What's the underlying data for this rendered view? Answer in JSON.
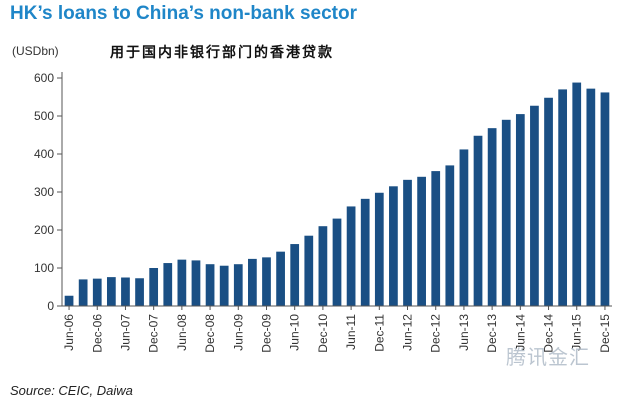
{
  "title": "HK’s loans to China’s non-bank sector",
  "unit_label": "(USDbn)",
  "subtitle_cn": "用于国内非银行部门的香港贷款",
  "source": "Source: CEIC, Daiwa",
  "watermark": "腾讯金汇",
  "colors": {
    "bar": "#1a4f84",
    "title": "#1f86c8",
    "axis": "#555555"
  },
  "chart_data": {
    "type": "bar",
    "ylabel": "(USDbn)",
    "ylim": [
      0,
      600
    ],
    "yticks": [
      0,
      100,
      200,
      300,
      400,
      500,
      600
    ],
    "grid": false,
    "xtick_labels": [
      "Jun-06",
      "Dec-06",
      "Jun-07",
      "Dec-07",
      "Jun-08",
      "Dec-08",
      "Jun-09",
      "Dec-09",
      "Jun-10",
      "Dec-10",
      "Jun-11",
      "Dec-11",
      "Jun-12",
      "Dec-12",
      "Jun-13",
      "Dec-13",
      "Jun-14",
      "Dec-14",
      "Jun-15",
      "Dec-15"
    ],
    "values": [
      27,
      70,
      72,
      76,
      75,
      73,
      100,
      113,
      122,
      120,
      110,
      106,
      110,
      124,
      128,
      143,
      163,
      185,
      210,
      230,
      262,
      282,
      298,
      315,
      332,
      340,
      355,
      370,
      412,
      448,
      468,
      490,
      505,
      527,
      548,
      570,
      588,
      572,
      562
    ]
  }
}
